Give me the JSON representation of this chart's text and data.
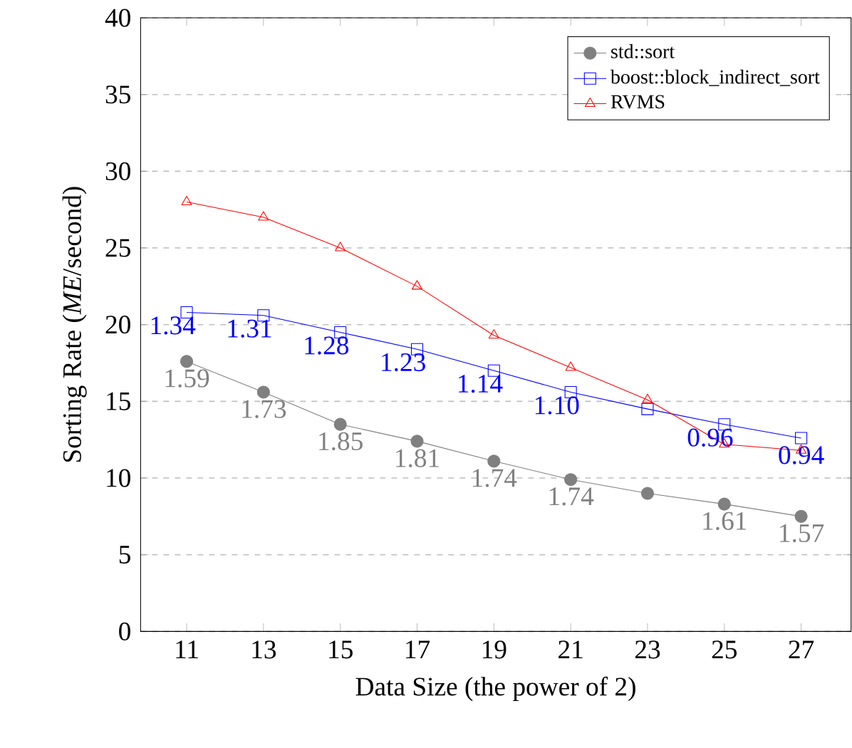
{
  "chart_data": {
    "type": "line",
    "xlabel": "Data Size (the power of 2)",
    "ylabel": "Sorting Rate (*ME*/second)",
    "x": [
      11,
      13,
      15,
      17,
      19,
      21,
      23,
      25,
      27
    ],
    "series": [
      {
        "name": "std::sort",
        "color": "#808080",
        "marker": "circle",
        "values": [
          17.6,
          15.6,
          13.5,
          12.4,
          11.1,
          9.9,
          9.0,
          8.3,
          7.5
        ]
      },
      {
        "name": "boost::block_indirect_sort",
        "color": "#0000ff",
        "marker": "square",
        "values": [
          20.8,
          20.6,
          19.5,
          18.4,
          17.0,
          15.6,
          14.5,
          13.5,
          12.6
        ]
      },
      {
        "name": "RVMS",
        "color": "#ff0000",
        "marker": "triangle",
        "values": [
          28.0,
          27.0,
          25.0,
          22.5,
          19.3,
          17.2,
          15.1,
          12.2,
          11.8
        ]
      }
    ],
    "annotations": [
      {
        "text": "1.59",
        "x": 11,
        "y": 17.6
      },
      {
        "text": "1.73",
        "x": 13,
        "y": 15.6
      },
      {
        "text": "1.85",
        "x": 15,
        "y": 13.5
      },
      {
        "text": "1.81",
        "x": 17,
        "y": 12.4
      },
      {
        "text": "1.74",
        "x": 19,
        "y": 11.1
      },
      {
        "text": "1.74",
        "x": 21,
        "y": 9.9
      },
      {
        "text": "1.61",
        "x": 25,
        "y": 8.3
      },
      {
        "text": "1.57",
        "x": 27,
        "y": 7.5
      },
      {
        "text": "1.34",
        "x": 11,
        "y": 20.8
      },
      {
        "text": "1.31",
        "x": 13,
        "y": 20.6
      },
      {
        "text": "1.28",
        "x": 15,
        "y": 19.5
      },
      {
        "text": "1.23",
        "x": 17,
        "y": 18.4
      },
      {
        "text": "1.14",
        "x": 19,
        "y": 17.0
      },
      {
        "text": "1.10",
        "x": 21,
        "y": 15.6
      },
      {
        "text": "0.96",
        "x": 25,
        "y": 13.5
      },
      {
        "text": "0.94",
        "x": 27,
        "y": 12.6
      }
    ],
    "xlim": [
      9.8,
      28.3
    ],
    "ylim": [
      0,
      40
    ],
    "xticks": [
      11,
      13,
      15,
      17,
      19,
      21,
      23,
      25,
      27
    ],
    "yticks": [
      0,
      5,
      10,
      15,
      20,
      25,
      30,
      35,
      40
    ],
    "grid": "y",
    "legend": "top right",
    "line_style": "solid"
  }
}
